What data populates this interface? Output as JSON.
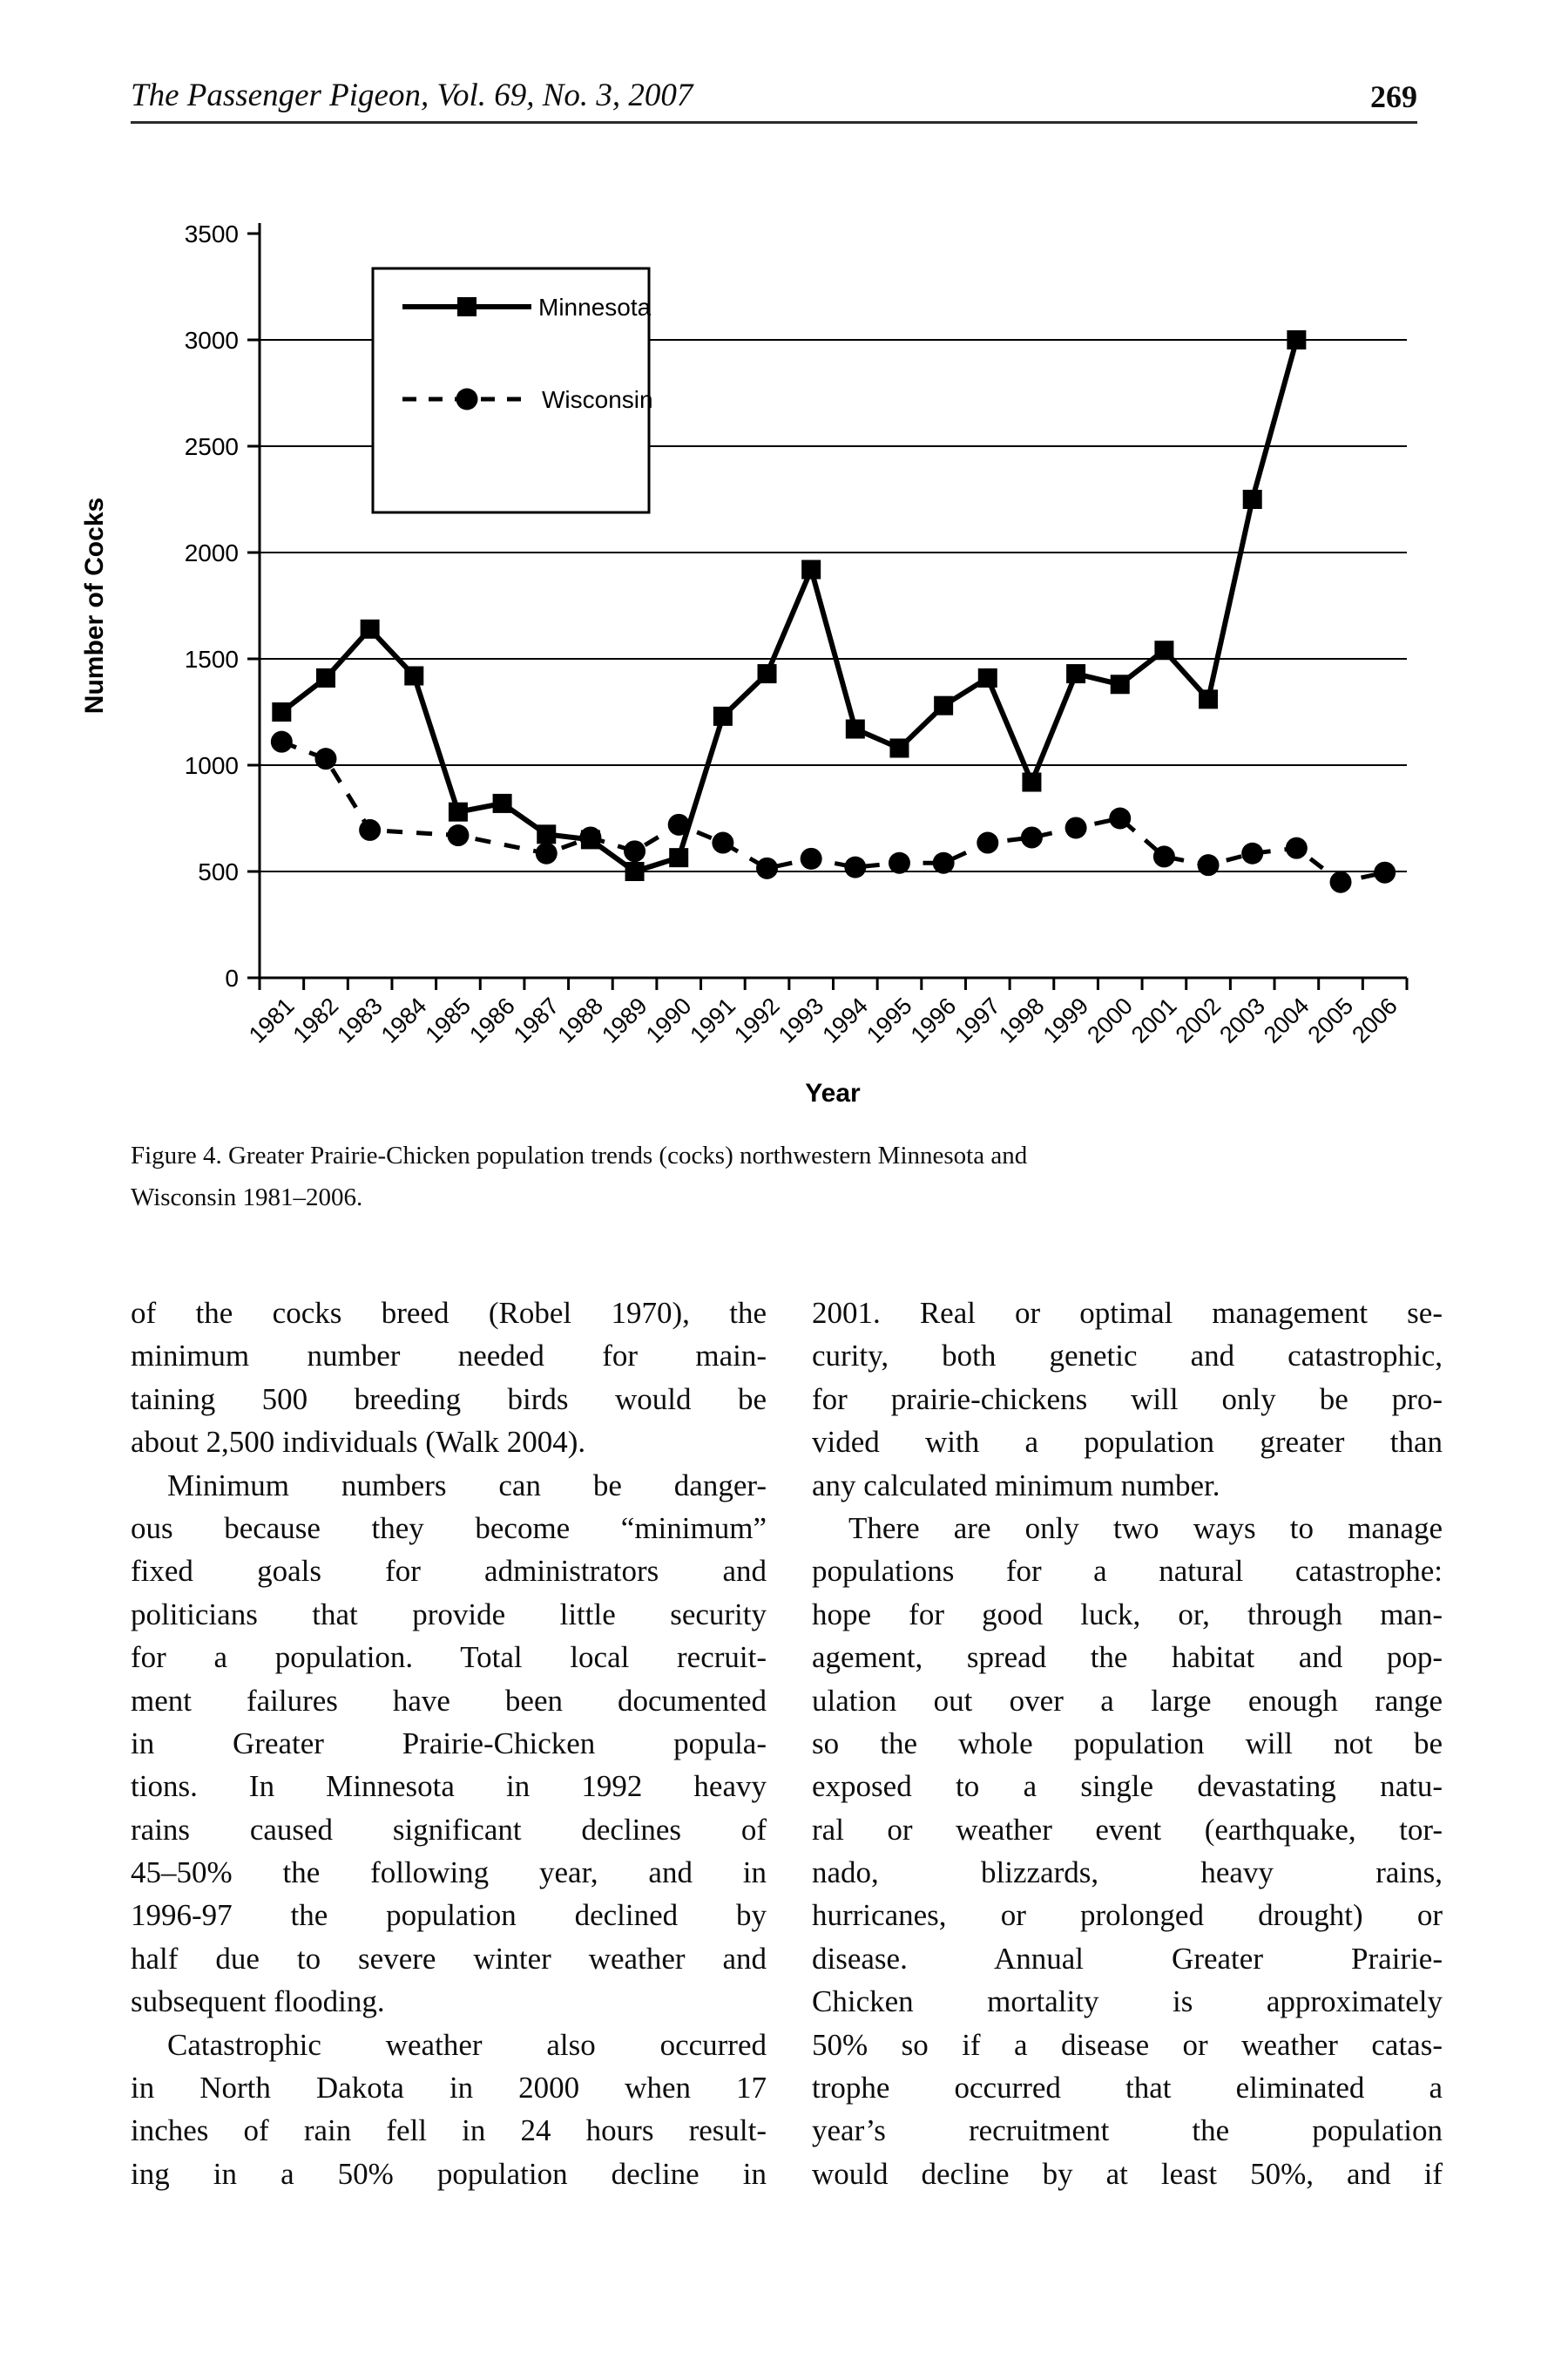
{
  "header": {
    "journal_title": "The Passenger Pigeon, Vol. 69, No. 3, 2007",
    "page_number": "269"
  },
  "caption": {
    "line1": "Figure 4. Greater Prairie-Chicken population trends (cocks) northwestern Minnesota and",
    "line2": "Wisconsin 1981–2006."
  },
  "chart_data": {
    "type": "line",
    "title": "",
    "xlabel": "Year",
    "ylabel": "Number of Cocks",
    "ylim": [
      0,
      3500
    ],
    "yticks": [
      0,
      500,
      1000,
      1500,
      2000,
      2500,
      3000,
      3500
    ],
    "grid": "horizontal",
    "legend_position": "inside-top-left",
    "categories": [
      "1981",
      "1982",
      "1983",
      "1984",
      "1985",
      "1986",
      "1987",
      "1988",
      "1989",
      "1990",
      "1991",
      "1992",
      "1993",
      "1994",
      "1995",
      "1996",
      "1997",
      "1998",
      "1999",
      "2000",
      "2001",
      "2002",
      "2003",
      "2004",
      "2005",
      "2006"
    ],
    "series": [
      {
        "name": "Minnesota",
        "line": "solid",
        "marker": "square",
        "color": "#000000",
        "values": [
          1250,
          1410,
          1640,
          1420,
          780,
          820,
          675,
          650,
          500,
          565,
          1230,
          1430,
          1920,
          1170,
          1080,
          1280,
          1410,
          920,
          1430,
          1380,
          1540,
          1310,
          2250,
          3000,
          null,
          null
        ]
      },
      {
        "name": "Wisconsin",
        "line": "dash-dot",
        "marker": "circle",
        "color": "#000000",
        "values": [
          1110,
          1030,
          695,
          null,
          670,
          null,
          585,
          660,
          595,
          720,
          635,
          515,
          560,
          520,
          540,
          540,
          635,
          660,
          705,
          750,
          570,
          530,
          585,
          610,
          450,
          495
        ]
      }
    ]
  },
  "body": {
    "left_column": {
      "lines": [
        {
          "t": "of the cocks breed (Robel 1970), the"
        },
        {
          "t": "minimum number needed for main-"
        },
        {
          "t": "taining 500 breeding birds would be"
        },
        {
          "t": "about 2,500 individuals (Walk 2004).",
          "end": true
        },
        {
          "t": "Minimum numbers can be danger-",
          "indent": true
        },
        {
          "t": "ous because they become “minimum”"
        },
        {
          "t": "fixed goals for administrators and"
        },
        {
          "t": "politicians that provide little security"
        },
        {
          "t": "for a population. Total local recruit-"
        },
        {
          "t": "ment failures have been documented"
        },
        {
          "t": "in Greater Prairie-Chicken popula-"
        },
        {
          "t": "tions. In Minnesota in 1992 heavy"
        },
        {
          "t": "rains caused significant declines of"
        },
        {
          "t": "45–50% the following year, and in"
        },
        {
          "t": "1996-97 the population declined by"
        },
        {
          "t": "half due to severe winter weather and"
        },
        {
          "t": "subsequent flooding.",
          "end": true
        },
        {
          "t": "Catastrophic weather also occurred",
          "indent": true
        },
        {
          "t": "in North Dakota in 2000 when 17"
        },
        {
          "t": "inches of rain fell in 24 hours result-"
        },
        {
          "t": "ing in a 50% population decline in"
        }
      ]
    },
    "right_column": {
      "lines": [
        {
          "t": "2001. Real or optimal management se-"
        },
        {
          "t": "curity, both genetic and catastrophic,"
        },
        {
          "t": "for prairie-chickens will only be pro-"
        },
        {
          "t": "vided with a population greater than"
        },
        {
          "t": "any calculated minimum number.",
          "end": true
        },
        {
          "t": "There are only two ways to manage",
          "indent": true
        },
        {
          "t": "populations for a natural catastrophe:"
        },
        {
          "t": "hope for good luck, or, through man-"
        },
        {
          "t": "agement, spread the habitat and pop-"
        },
        {
          "t": "ulation out over a large enough range"
        },
        {
          "t": "so the whole population will not be"
        },
        {
          "t": "exposed to a single devastating natu-"
        },
        {
          "t": "ral or weather event (earthquake, tor-"
        },
        {
          "t": "nado, blizzards, heavy rains,"
        },
        {
          "t": "hurricanes, or prolonged drought) or"
        },
        {
          "t": "disease. Annual Greater Prairie-"
        },
        {
          "t": "Chicken mortality is approximately"
        },
        {
          "t": "50% so if a disease or weather catas-"
        },
        {
          "t": "trophe occurred that eliminated a"
        },
        {
          "t": "year’s recruitment the population"
        },
        {
          "t": "would decline by at least 50%, and if"
        }
      ]
    }
  },
  "ink_color": "#000000",
  "paper_color": "#ffffff"
}
